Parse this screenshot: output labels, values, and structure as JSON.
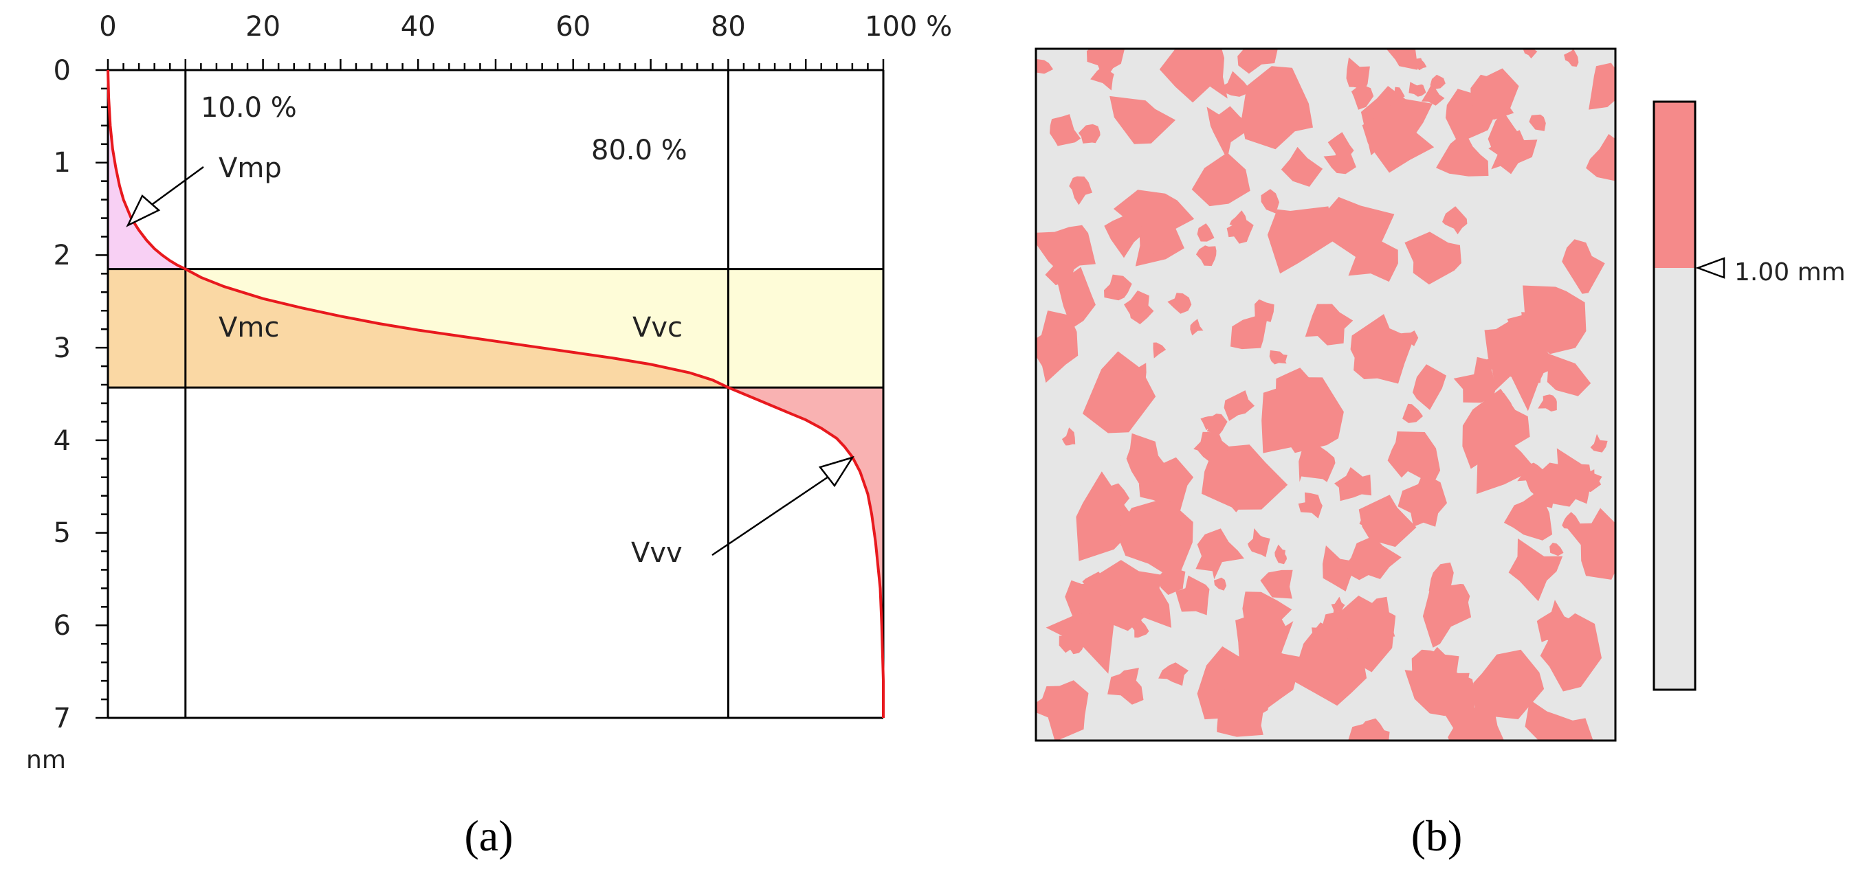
{
  "chart_data": [
    {
      "type": "line",
      "panel_label": "(a)",
      "x_ticks": [
        "0",
        "20",
        "40",
        "60",
        "80",
        "100 %"
      ],
      "y_ticks": [
        "0",
        "1",
        "2",
        "3",
        "4",
        "5",
        "6",
        "7"
      ],
      "yunit": "nm",
      "xlim": [
        0,
        100
      ],
      "ylim": [
        0,
        7
      ],
      "y_inverted": true,
      "mr1": 10.0,
      "mr2": 80.0,
      "mr1_label": "10.0 %",
      "mr2_label": "80.0 %",
      "core_top": 2.15,
      "core_bottom": 3.43,
      "region_labels": {
        "vmp": "Vmp",
        "vmc": "Vmc",
        "vvc": "Vvc",
        "vvv": "Vvv"
      },
      "curve": {
        "x": [
          0,
          0.1,
          0.3,
          0.6,
          1,
          1.5,
          2,
          3,
          4,
          5,
          6,
          7,
          8,
          9,
          10,
          12,
          15,
          20,
          25,
          30,
          35,
          40,
          45,
          50,
          55,
          60,
          65,
          70,
          75,
          78,
          80,
          82,
          84,
          86,
          88,
          90,
          92,
          94,
          95,
          96,
          97,
          98,
          98.5,
          99,
          99.3,
          99.6,
          99.8,
          100,
          100
        ],
        "y": [
          0.0,
          0.3,
          0.6,
          0.85,
          1.05,
          1.25,
          1.4,
          1.6,
          1.73,
          1.84,
          1.93,
          2.0,
          2.06,
          2.11,
          2.15,
          2.24,
          2.34,
          2.47,
          2.57,
          2.66,
          2.74,
          2.81,
          2.87,
          2.93,
          2.99,
          3.05,
          3.11,
          3.18,
          3.27,
          3.35,
          3.43,
          3.5,
          3.57,
          3.64,
          3.71,
          3.78,
          3.87,
          3.98,
          4.07,
          4.18,
          4.34,
          4.58,
          4.8,
          5.1,
          5.35,
          5.6,
          6.0,
          6.6,
          7.0
        ]
      },
      "colors": {
        "curve": "#e8191e",
        "vmp": "#f8d0f4",
        "vmc": "#fad8a4",
        "vvc": "#fefcd8",
        "vvv": "#f9b2b2"
      }
    },
    {
      "type": "other",
      "panel_label": "(b)",
      "scale_label": "1.00 mm",
      "colors": {
        "particles": "#f58a8a",
        "background": "#e6e6e6"
      }
    }
  ]
}
